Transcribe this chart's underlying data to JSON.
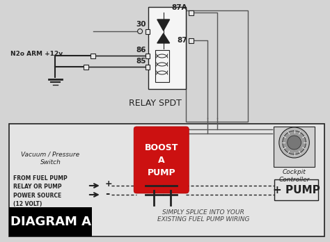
{
  "bg_color": "#d4d4d4",
  "bottom_bg": "#e4e4e4",
  "relay_box_color": "#f5f5f5",
  "relay_label": "RELAY SPDT",
  "boost_box_color": "#cc1111",
  "boost_text": "BOOST\nA\nPUMP",
  "boost_text_color": "#ffffff",
  "diagram_label": "DIAGRAM A",
  "diagram_label_bg": "#000000",
  "diagram_label_color": "#ffffff",
  "bottom_text1": "SIMPLY SPLICE INTO YOUR",
  "bottom_text2": "EXISTING FUEL PUMP WIRING",
  "vp_switch_text": "Vacuum / Pressure\nSwitch",
  "cockpit_text": "Cockpit\nController",
  "from_fuel_text": "FROM FUEL PUMP\nRELAY OR PUMP\nPOWER SOURCE\n(12 VOLT)",
  "n2o_label": "N2o ARM +12v",
  "plus_pump_text": "+ PUMP",
  "line_color": "#222222",
  "wire_color": "#555555"
}
